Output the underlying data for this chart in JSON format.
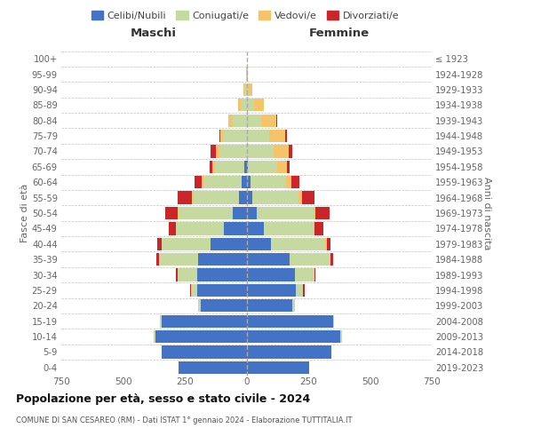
{
  "age_groups": [
    "0-4",
    "5-9",
    "10-14",
    "15-19",
    "20-24",
    "25-29",
    "30-34",
    "35-39",
    "40-44",
    "45-49",
    "50-54",
    "55-59",
    "60-64",
    "65-69",
    "70-74",
    "75-79",
    "80-84",
    "85-89",
    "90-94",
    "95-99",
    "100+"
  ],
  "birth_years": [
    "2019-2023",
    "2014-2018",
    "2009-2013",
    "2004-2008",
    "1999-2003",
    "1994-1998",
    "1989-1993",
    "1984-1988",
    "1979-1983",
    "1974-1978",
    "1969-1973",
    "1964-1968",
    "1959-1963",
    "1954-1958",
    "1949-1953",
    "1944-1948",
    "1939-1943",
    "1934-1938",
    "1929-1933",
    "1924-1928",
    "≤ 1923"
  ],
  "males": {
    "celibi": [
      275,
      345,
      370,
      345,
      185,
      200,
      200,
      195,
      145,
      90,
      55,
      30,
      20,
      8,
      0,
      0,
      0,
      0,
      0,
      0,
      0
    ],
    "coniugati": [
      0,
      0,
      5,
      5,
      10,
      25,
      80,
      160,
      200,
      195,
      220,
      185,
      155,
      120,
      110,
      95,
      55,
      25,
      8,
      2,
      0
    ],
    "vedovi": [
      0,
      0,
      0,
      0,
      0,
      0,
      0,
      0,
      0,
      0,
      5,
      5,
      5,
      10,
      15,
      10,
      20,
      8,
      5,
      0,
      0
    ],
    "divorziati": [
      0,
      0,
      0,
      0,
      0,
      5,
      5,
      10,
      15,
      30,
      50,
      60,
      30,
      10,
      20,
      5,
      0,
      0,
      0,
      0,
      0
    ]
  },
  "females": {
    "nubili": [
      255,
      345,
      380,
      350,
      185,
      200,
      195,
      175,
      100,
      70,
      40,
      25,
      15,
      5,
      0,
      0,
      0,
      0,
      0,
      0,
      0
    ],
    "coniugate": [
      0,
      0,
      5,
      5,
      12,
      30,
      80,
      165,
      220,
      200,
      230,
      185,
      145,
      120,
      110,
      90,
      60,
      30,
      8,
      2,
      0
    ],
    "vedove": [
      0,
      0,
      0,
      0,
      0,
      0,
      0,
      0,
      5,
      5,
      10,
      15,
      20,
      40,
      60,
      65,
      60,
      40,
      15,
      2,
      0
    ],
    "divorziate": [
      0,
      0,
      0,
      0,
      0,
      5,
      5,
      10,
      15,
      35,
      55,
      50,
      35,
      10,
      15,
      10,
      5,
      0,
      0,
      0,
      0
    ]
  },
  "colors": {
    "celibi": "#4472C4",
    "coniugati": "#C5D9A0",
    "vedovi": "#F4C36A",
    "divorziati": "#CC2529"
  },
  "title": "Popolazione per età, sesso e stato civile - 2024",
  "subtitle": "COMUNE DI SAN CESAREO (RM) - Dati ISTAT 1° gennaio 2024 - Elaborazione TUTTITALIA.IT",
  "xlabel_left": "Maschi",
  "xlabel_right": "Femmine",
  "ylabel_left": "Fasce di età",
  "ylabel_right": "Anni di nascita",
  "xlim": 750,
  "xticks": [
    -750,
    -500,
    -250,
    0,
    250,
    500,
    750
  ],
  "legend_labels": [
    "Celibi/Nubili",
    "Coniugati/e",
    "Vedovi/e",
    "Divorziati/e"
  ],
  "bg_color": "#ffffff",
  "grid_color": "#bbbbbb"
}
